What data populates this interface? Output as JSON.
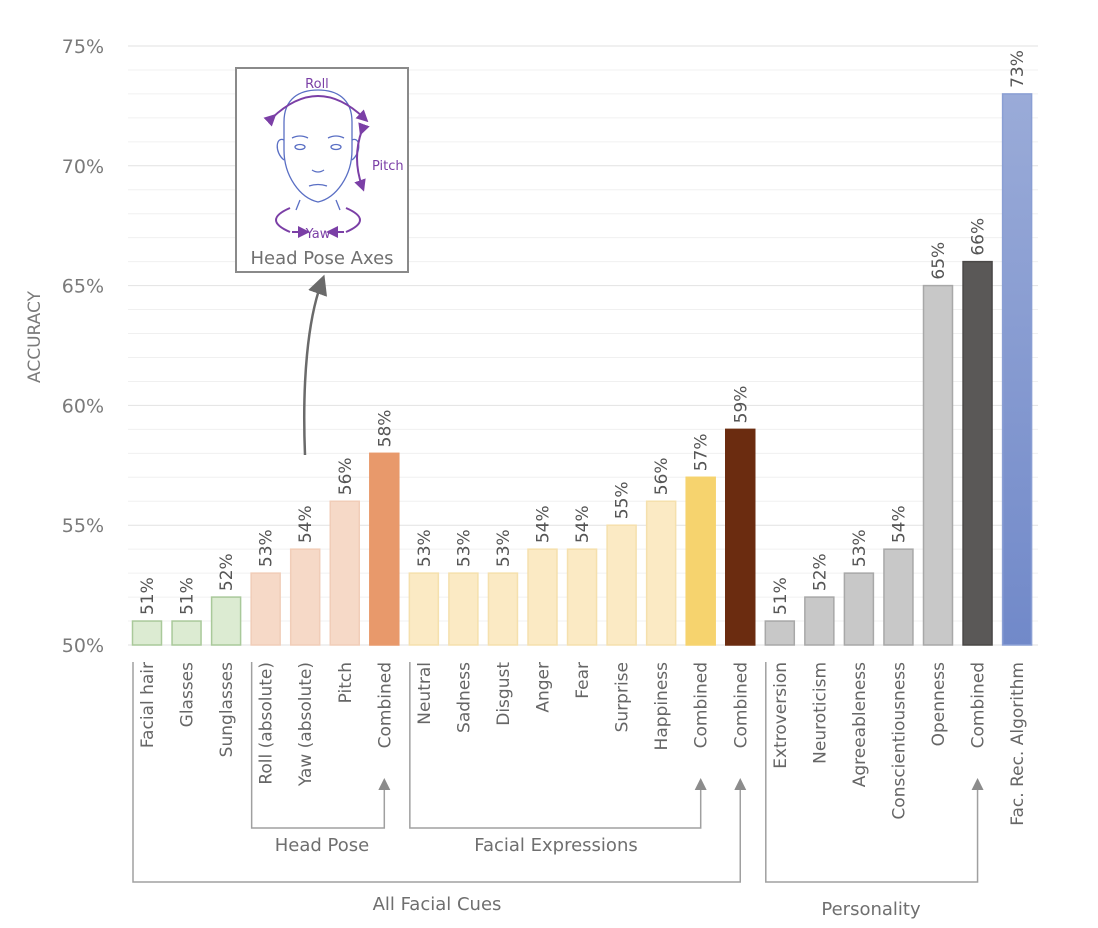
{
  "chart_data": {
    "type": "bar",
    "title": "",
    "xlabel": "",
    "ylabel": "ACCURACY",
    "ylim": [
      50,
      75
    ],
    "yticks": [
      "50%",
      "55%",
      "60%",
      "65%",
      "70%",
      "75%"
    ],
    "ytick_values": [
      50,
      55,
      60,
      65,
      70,
      75
    ],
    "grid": true,
    "categories": [
      "Facial hair",
      "Glasses",
      "Sunglasses",
      "Roll (absolute)",
      "Yaw (absolute)",
      "Pitch",
      "Combined",
      "Neutral",
      "Sadness",
      "Disgust",
      "Anger",
      "Fear",
      "Surprise",
      "Happiness",
      "Combined",
      "Combined",
      "Extroversion",
      "Neuroticism",
      "Agreeableness",
      "Conscientiousness",
      "Openness",
      "Combined",
      "Fac. Rec. Algorithm"
    ],
    "values": [
      51,
      51,
      52,
      53,
      54,
      56,
      58,
      53,
      53,
      53,
      54,
      54,
      55,
      56,
      57,
      59,
      51,
      52,
      53,
      54,
      65,
      66,
      73
    ],
    "data_labels": [
      "51%",
      "51%",
      "52%",
      "53%",
      "54%",
      "56%",
      "58%",
      "53%",
      "53%",
      "53%",
      "54%",
      "54%",
      "55%",
      "56%",
      "57%",
      "59%",
      "51%",
      "52%",
      "53%",
      "54%",
      "65%",
      "66%",
      "73%"
    ],
    "bar_colors": [
      "#dcebd2",
      "#dcebd2",
      "#dcebd2",
      "#f6d9c7",
      "#f6d9c7",
      "#f6d9c7",
      "#e8996b",
      "#fbeac4",
      "#fbeac4",
      "#fbeac4",
      "#fbeac4",
      "#fbeac4",
      "#fbeac4",
      "#fbeac4",
      "#f6d36e",
      "#6b2c10",
      "#c8c8c8",
      "#c8c8c8",
      "#c8c8c8",
      "#c8c8c8",
      "#c8c8c8",
      "#5a5857",
      "#8a9fd4"
    ],
    "bar_edges": [
      "#a9c99a",
      "#a9c99a",
      "#a9c99a",
      "#f1cdb8",
      "#f1cdb8",
      "#f1cdb8",
      "#e8996b",
      "#f5e0ad",
      "#f5e0ad",
      "#f5e0ad",
      "#f5e0ad",
      "#f5e0ad",
      "#f5e0ad",
      "#f5e0ad",
      "#f6d36e",
      "#6b2c10",
      "#a8a8a8",
      "#a8a8a8",
      "#a8a8a8",
      "#a8a8a8",
      "#a8a8a8",
      "#4a4847",
      "#8a9fd4"
    ],
    "groups": [
      {
        "label": "Head Pose",
        "from": 3,
        "to": 5,
        "target": 6
      },
      {
        "label": "Facial Expressions",
        "from": 7,
        "to": 13,
        "target": 14
      },
      {
        "label": "All Facial Cues",
        "from": 0,
        "to": 14,
        "target": 15
      },
      {
        "label": "Personality",
        "from": 16,
        "to": 20,
        "target": 21
      }
    ],
    "inset": {
      "title": "Head Pose Axes",
      "axes": [
        "Roll",
        "Pitch",
        "Yaw"
      ],
      "points_to": "Yaw (absolute)"
    }
  }
}
